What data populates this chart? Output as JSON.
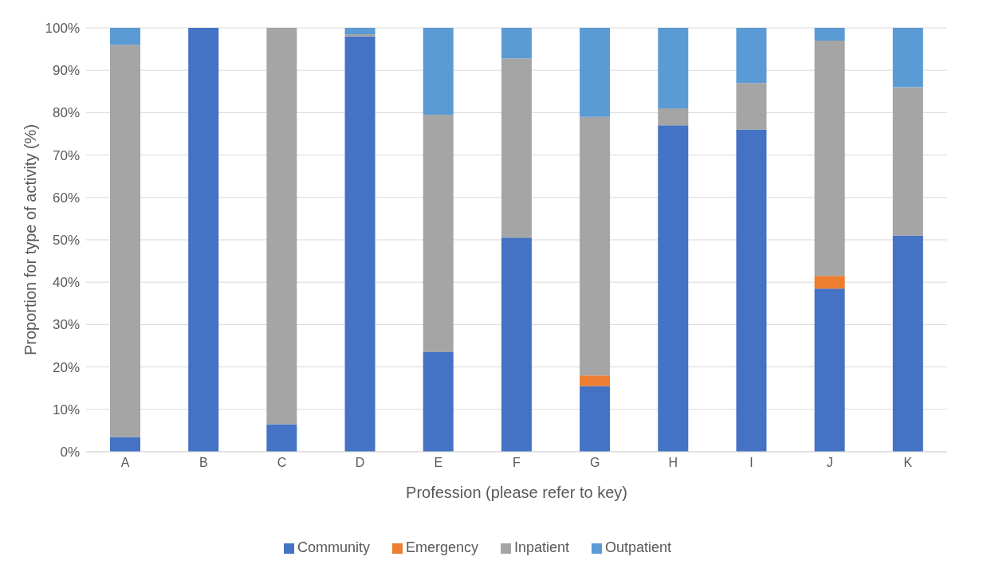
{
  "chart_data": {
    "type": "bar",
    "stacked": true,
    "xlabel": "Profession (please refer to key)",
    "ylabel": "Proportion for type of activity (%)",
    "categories": [
      "A",
      "B",
      "C",
      "D",
      "E",
      "F",
      "G",
      "H",
      "I",
      "J",
      "K"
    ],
    "series": [
      {
        "name": "Community",
        "color": "#4472c4",
        "values": [
          3.5,
          100,
          6.5,
          98,
          23.5,
          50.5,
          15.5,
          77,
          76,
          38.5,
          51
        ]
      },
      {
        "name": "Emergency",
        "color": "#ed7d31",
        "values": [
          0,
          0,
          0,
          0,
          0,
          0,
          2.5,
          0,
          0,
          3,
          0
        ]
      },
      {
        "name": "Inpatient",
        "color": "#a5a5a5",
        "values": [
          92.5,
          0,
          93.5,
          0.5,
          56,
          42.3,
          61,
          4,
          11,
          55.5,
          35
        ]
      },
      {
        "name": "Outpatient",
        "color": "#5b9bd5",
        "values": [
          4,
          0,
          0,
          1.5,
          20.5,
          7.2,
          21,
          19,
          13,
          3,
          14
        ]
      }
    ],
    "ylim": [
      0,
      100
    ],
    "yticks": [
      {
        "value": 0,
        "label": "0%"
      },
      {
        "value": 10,
        "label": "10%"
      },
      {
        "value": 20,
        "label": "20%"
      },
      {
        "value": 30,
        "label": "30%"
      },
      {
        "value": 40,
        "label": "40%"
      },
      {
        "value": 50,
        "label": "50%"
      },
      {
        "value": 60,
        "label": "60%"
      },
      {
        "value": 70,
        "label": "70%"
      },
      {
        "value": 80,
        "label": "80%"
      },
      {
        "value": 90,
        "label": "90%"
      },
      {
        "value": 100,
        "label": "100%"
      }
    ],
    "grid": "y",
    "legend": "bottom"
  }
}
